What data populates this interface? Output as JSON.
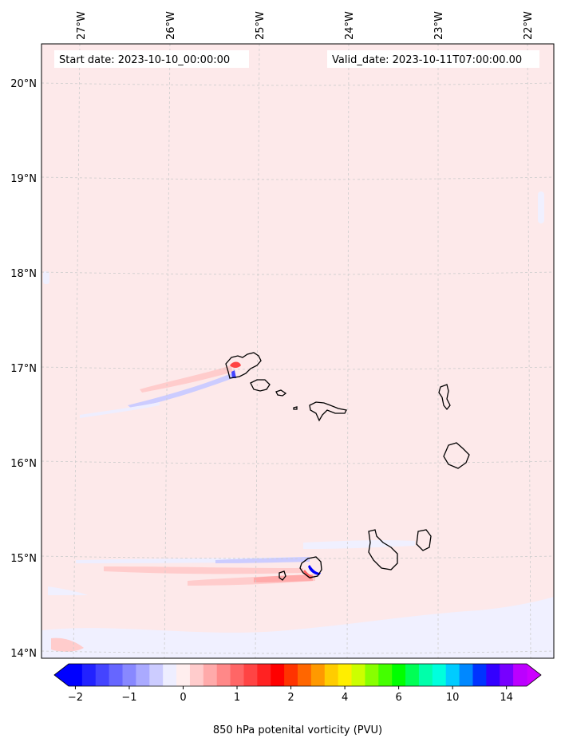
{
  "map": {
    "start_date_label": "Start date: 2023-10-10_00:00:00",
    "valid_date_label": "Valid_date: 2023-10-11T07:00:00.00",
    "longitude_labels": [
      "27°W",
      "26°W",
      "25°W",
      "24°W",
      "23°W",
      "22°W"
    ],
    "latitude_labels": [
      "20°N",
      "19°N",
      "18°N",
      "17°N",
      "16°N",
      "15°N",
      "14°N"
    ],
    "background_color": "#fde9ea",
    "coastline_color": "#000000",
    "gridlines": "dashed light gray"
  },
  "colorbar": {
    "label": "850 hPa potenital vorticity (PVU)",
    "tick_labels": [
      "−2",
      "−1",
      "0",
      "1",
      "2",
      "4",
      "6",
      "10",
      "14"
    ],
    "extend": "both",
    "colors": [
      "#0000ff",
      "#2222ff",
      "#4444ff",
      "#6666ff",
      "#8888ff",
      "#aaaaff",
      "#ccccff",
      "#eeeeff",
      "#ffeeee",
      "#ffcccc",
      "#ffaaaa",
      "#ff8888",
      "#ff6666",
      "#ff4444",
      "#ff2222",
      "#ff0000",
      "#ff3300",
      "#ff6600",
      "#ff9900",
      "#ffcc00",
      "#ffee00",
      "#ccff00",
      "#88ff00",
      "#44ff00",
      "#00ff00",
      "#00ff55",
      "#00ffaa",
      "#00ffdd",
      "#00ccff",
      "#0088ff",
      "#0033ff",
      "#3300ff",
      "#7700ff",
      "#bb00ff"
    ],
    "under_color": "#0000ff",
    "over_color": "#cc00ff"
  }
}
